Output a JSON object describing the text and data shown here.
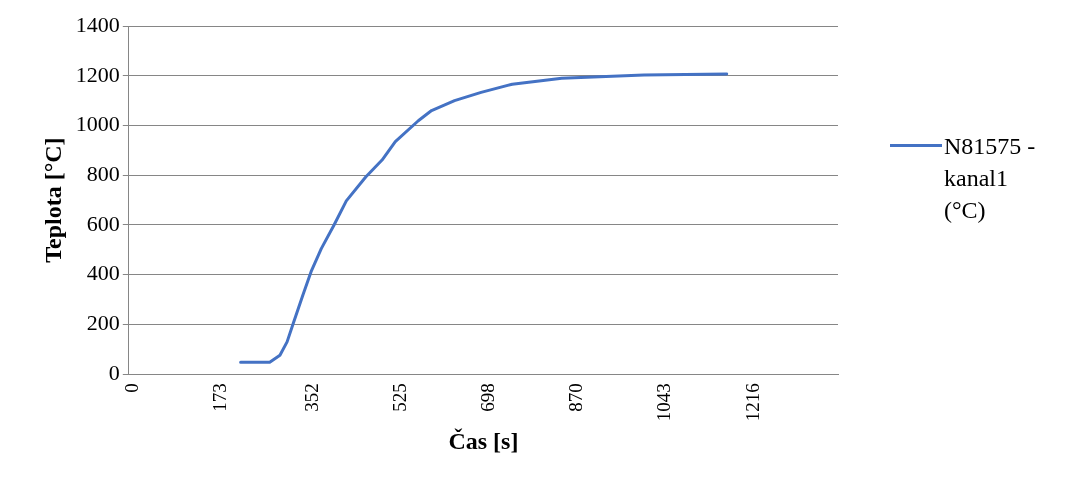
{
  "chart_data": {
    "type": "line",
    "xlabel": "Čas [s]",
    "ylabel": "Teplota [°C]",
    "xlim": [
      0,
      1389
    ],
    "xticks": [
      0,
      173,
      352,
      525,
      698,
      870,
      1043,
      1216
    ],
    "ylim": [
      0,
      1400
    ],
    "yticks": [
      0,
      200,
      400,
      600,
      800,
      1000,
      1200,
      1400
    ],
    "grid": "y",
    "legend": "right",
    "marker": "none",
    "line_style": "solid",
    "series": [
      {
        "name": "N81575 - kanal1 (°C)",
        "color": "#4472c4",
        "x": [
          219,
          276,
          296,
          310,
          323,
          341,
          357,
          377,
          402,
          426,
          464,
          496,
          522,
          567,
          593,
          638,
          690,
          751,
          848,
          1009,
          1171
        ],
        "values": [
          48,
          48,
          76,
          130,
          210,
          318,
          412,
          505,
          600,
          697,
          793,
          861,
          935,
          1019,
          1060,
          1100,
          1133,
          1166,
          1190,
          1203,
          1207
        ]
      }
    ]
  }
}
